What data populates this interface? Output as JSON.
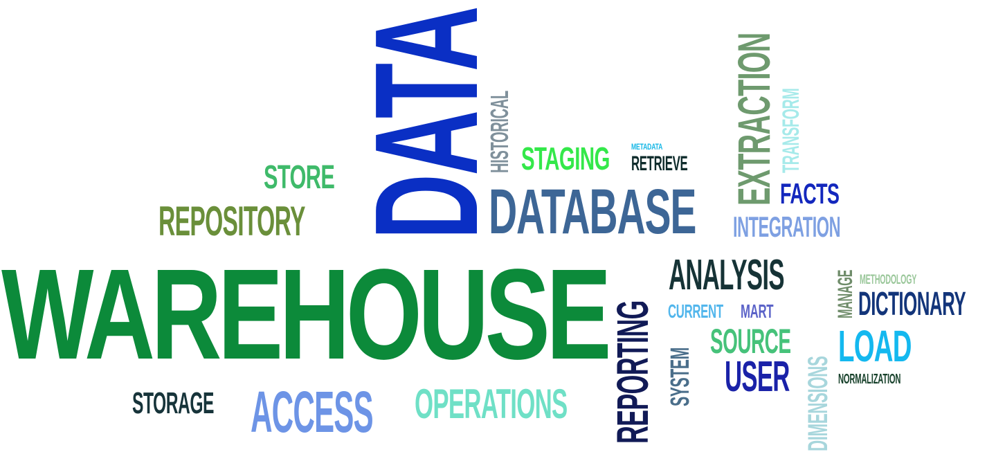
{
  "words": {
    "data": {
      "text": "DATA",
      "color": "#0a2fc4"
    },
    "warehouse": {
      "text": "WAREHOUSE",
      "color": "#0c8a3a"
    },
    "database": {
      "text": "DATABASE",
      "color": "#3d6696"
    },
    "repository": {
      "text": "REPOSITORY",
      "color": "#6a8f3a"
    },
    "store": {
      "text": "STORE",
      "color": "#3fba6a"
    },
    "storage": {
      "text": "STORAGE",
      "color": "#17343a"
    },
    "access": {
      "text": "ACCESS",
      "color": "#6d94e6"
    },
    "operations": {
      "text": "OPERATIONS",
      "color": "#6fe0c6"
    },
    "historical": {
      "text": "HISTORICAL",
      "color": "#7f909b"
    },
    "staging": {
      "text": "STAGING",
      "color": "#34e84a"
    },
    "metadata": {
      "text": "METADATA",
      "color": "#16b7e6"
    },
    "retrieve": {
      "text": "RETRIEVE",
      "color": "#0e2b2b"
    },
    "extraction": {
      "text": "EXTRACTION",
      "color": "#6e9a6e"
    },
    "transform": {
      "text": "TRANSFORM",
      "color": "#a6eaea"
    },
    "facts": {
      "text": "FACTS",
      "color": "#1327bd"
    },
    "integration": {
      "text": "INTEGRATION",
      "color": "#7ea0e2"
    },
    "reporting": {
      "text": "REPORTING",
      "color": "#111a56"
    },
    "analysis": {
      "text": "ANALYSIS",
      "color": "#163336"
    },
    "current": {
      "text": "CURRENT",
      "color": "#52b6ec"
    },
    "mart": {
      "text": "MART",
      "color": "#5b63c8"
    },
    "system": {
      "text": "SYSTEM",
      "color": "#4a6e8a"
    },
    "source": {
      "text": "SOURCE",
      "color": "#46c27a"
    },
    "user": {
      "text": "USER",
      "color": "#1a22a8"
    },
    "dimensions": {
      "text": "DIMENSIONS",
      "color": "#a7d6dc"
    },
    "manage": {
      "text": "MANAGE",
      "color": "#6f8c6a"
    },
    "methodology": {
      "text": "METHODOLOGY",
      "color": "#9ac79a"
    },
    "dictionary": {
      "text": "DICTIONARY",
      "color": "#13357a"
    },
    "load": {
      "text": "LOAD",
      "color": "#14b8ef"
    },
    "normalization": {
      "text": "NORMALIZATION",
      "color": "#16402a"
    }
  }
}
